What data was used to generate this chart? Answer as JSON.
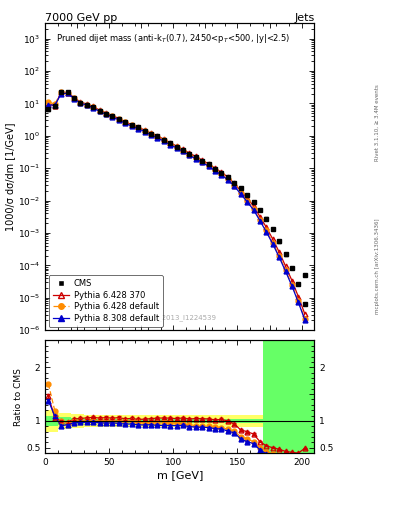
{
  "title_top": "7000 GeV pp",
  "title_right": "Jets",
  "ylabel_main": "1000/σ dσ/dm [1/GeV]",
  "ylabel_ratio": "Ratio to CMS",
  "xlabel": "m [GeV]",
  "watermark": "CMS_2013_I1224539",
  "right_label": "mcplots.cern.ch [arXiv:1306.3436]",
  "right_label2": "Rivet 3.1.10, ≥ 3.4M events",
  "cms_x": [
    2.5,
    7.5,
    12.5,
    17.5,
    22.5,
    27.5,
    32.5,
    37.5,
    42.5,
    47.5,
    52.5,
    57.5,
    62.5,
    67.5,
    72.5,
    77.5,
    82.5,
    87.5,
    92.5,
    97.5,
    102.5,
    107.5,
    112.5,
    117.5,
    122.5,
    127.5,
    132.5,
    137.5,
    142.5,
    147.5,
    152.5,
    157.5,
    162.5,
    167.5,
    172.5,
    177.5,
    182.5,
    187.5,
    192.5,
    197.5,
    202.5
  ],
  "cms_y": [
    6.5,
    8.0,
    22.0,
    22.0,
    14.5,
    10.5,
    9.0,
    7.5,
    5.8,
    4.8,
    4.0,
    3.2,
    2.6,
    2.1,
    1.8,
    1.45,
    1.15,
    0.95,
    0.74,
    0.58,
    0.46,
    0.36,
    0.28,
    0.22,
    0.17,
    0.13,
    0.097,
    0.073,
    0.053,
    0.036,
    0.024,
    0.015,
    0.009,
    0.0052,
    0.0028,
    0.0013,
    0.00055,
    0.00022,
    8.2e-05,
    2.7e-05,
    6.5e-06
  ],
  "cms_yerr": [
    0.5,
    0.6,
    1.5,
    1.5,
    1.0,
    0.7,
    0.6,
    0.5,
    0.38,
    0.32,
    0.26,
    0.21,
    0.17,
    0.14,
    0.12,
    0.096,
    0.076,
    0.063,
    0.049,
    0.039,
    0.031,
    0.024,
    0.019,
    0.015,
    0.012,
    0.0088,
    0.0066,
    0.005,
    0.0036,
    0.0025,
    0.0017,
    0.0011,
    0.00066,
    0.00039,
    0.00021,
    0.0001,
    4.3e-05,
    1.8e-05,
    6.8e-06,
    2.3e-06,
    5.6e-07
  ],
  "cms_isolated_x": [
    202.5
  ],
  "cms_isolated_y": [
    5e-05
  ],
  "py6_370_x": [
    2.5,
    7.5,
    12.5,
    17.5,
    22.5,
    27.5,
    32.5,
    37.5,
    42.5,
    47.5,
    52.5,
    57.5,
    62.5,
    67.5,
    72.5,
    77.5,
    82.5,
    87.5,
    92.5,
    97.5,
    102.5,
    107.5,
    112.5,
    117.5,
    122.5,
    127.5,
    132.5,
    137.5,
    142.5,
    147.5,
    152.5,
    157.5,
    162.5,
    167.5,
    172.5,
    177.5,
    182.5,
    187.5,
    192.5,
    197.5,
    202.5
  ],
  "py6_370_y": [
    9.5,
    8.5,
    22.0,
    21.5,
    15.0,
    11.0,
    9.5,
    8.0,
    6.1,
    5.1,
    4.2,
    3.4,
    2.7,
    2.2,
    1.85,
    1.5,
    1.2,
    1.0,
    0.78,
    0.61,
    0.48,
    0.38,
    0.29,
    0.23,
    0.177,
    0.135,
    0.099,
    0.075,
    0.053,
    0.034,
    0.02,
    0.012,
    0.0068,
    0.0032,
    0.0015,
    0.00065,
    0.00026,
    9.5e-05,
    3.4e-05,
    1.08e-05,
    3.2e-06
  ],
  "py6_def_x": [
    2.5,
    7.5,
    12.5,
    17.5,
    22.5,
    27.5,
    32.5,
    37.5,
    42.5,
    47.5,
    52.5,
    57.5,
    62.5,
    67.5,
    72.5,
    77.5,
    82.5,
    87.5,
    92.5,
    97.5,
    102.5,
    107.5,
    112.5,
    117.5,
    122.5,
    127.5,
    132.5,
    137.5,
    142.5,
    147.5,
    152.5,
    157.5,
    162.5,
    167.5,
    172.5,
    177.5,
    182.5,
    187.5,
    192.5,
    197.5,
    202.5
  ],
  "py6_def_y": [
    11.0,
    9.5,
    22.0,
    21.0,
    14.5,
    10.5,
    9.0,
    7.5,
    5.8,
    4.8,
    4.0,
    3.2,
    2.6,
    2.1,
    1.75,
    1.4,
    1.13,
    0.92,
    0.72,
    0.56,
    0.44,
    0.34,
    0.26,
    0.2,
    0.155,
    0.118,
    0.086,
    0.064,
    0.045,
    0.029,
    0.017,
    0.01,
    0.0055,
    0.0026,
    0.0012,
    0.0005,
    0.0002,
    7.2e-05,
    2.5e-05,
    7.8e-06,
    2.3e-06
  ],
  "py8_def_x": [
    2.5,
    7.5,
    12.5,
    17.5,
    22.5,
    27.5,
    32.5,
    37.5,
    42.5,
    47.5,
    52.5,
    57.5,
    62.5,
    67.5,
    72.5,
    77.5,
    82.5,
    87.5,
    92.5,
    97.5,
    102.5,
    107.5,
    112.5,
    117.5,
    122.5,
    127.5,
    132.5,
    137.5,
    142.5,
    147.5,
    152.5,
    157.5,
    162.5,
    167.5,
    172.5,
    177.5,
    182.5,
    187.5,
    192.5,
    197.5,
    202.5
  ],
  "py8_def_y": [
    9.0,
    8.7,
    20.0,
    20.5,
    14.0,
    10.2,
    8.8,
    7.3,
    5.6,
    4.6,
    3.85,
    3.05,
    2.45,
    1.98,
    1.67,
    1.34,
    1.07,
    0.87,
    0.68,
    0.53,
    0.42,
    0.33,
    0.25,
    0.195,
    0.15,
    0.114,
    0.083,
    0.062,
    0.043,
    0.028,
    0.016,
    0.0092,
    0.0052,
    0.0024,
    0.00108,
    0.00046,
    0.00018,
    6.6e-05,
    2.3e-05,
    7.2e-06,
    2.1e-06
  ],
  "ratio_py6_370_y": [
    1.46,
    1.06,
    1.0,
    0.977,
    1.034,
    1.048,
    1.056,
    1.067,
    1.052,
    1.063,
    1.05,
    1.063,
    1.038,
    1.048,
    1.028,
    1.034,
    1.043,
    1.053,
    1.054,
    1.052,
    1.043,
    1.056,
    1.036,
    1.045,
    1.041,
    1.038,
    1.021,
    1.027,
    1.0,
    0.944,
    0.833,
    0.8,
    0.756,
    0.615,
    0.536,
    0.5,
    0.473,
    0.432,
    0.415,
    0.4,
    0.492
  ],
  "ratio_py6_def_y": [
    1.69,
    1.19,
    1.0,
    0.955,
    1.0,
    1.0,
    1.0,
    1.0,
    1.0,
    1.0,
    1.0,
    1.0,
    1.0,
    1.0,
    0.972,
    0.966,
    0.983,
    0.968,
    0.973,
    0.966,
    0.957,
    0.944,
    0.929,
    0.909,
    0.912,
    0.908,
    0.887,
    0.877,
    0.849,
    0.806,
    0.708,
    0.667,
    0.611,
    0.5,
    0.429,
    0.385,
    0.364,
    0.327,
    0.305,
    0.289,
    0.354
  ],
  "ratio_py8_def_y": [
    1.38,
    1.088,
    0.909,
    0.932,
    0.966,
    0.971,
    0.978,
    0.973,
    0.966,
    0.958,
    0.963,
    0.953,
    0.942,
    0.943,
    0.928,
    0.924,
    0.93,
    0.916,
    0.919,
    0.914,
    0.913,
    0.917,
    0.893,
    0.886,
    0.882,
    0.877,
    0.856,
    0.849,
    0.811,
    0.778,
    0.667,
    0.613,
    0.578,
    0.462,
    0.386,
    0.354,
    0.327,
    0.3,
    0.28,
    0.267,
    0.323
  ],
  "ratio_x": [
    2.5,
    7.5,
    12.5,
    17.5,
    22.5,
    27.5,
    32.5,
    37.5,
    42.5,
    47.5,
    52.5,
    57.5,
    62.5,
    67.5,
    72.5,
    77.5,
    82.5,
    87.5,
    92.5,
    97.5,
    102.5,
    107.5,
    112.5,
    117.5,
    122.5,
    127.5,
    132.5,
    137.5,
    142.5,
    147.5,
    152.5,
    157.5,
    162.5,
    167.5,
    172.5,
    177.5,
    182.5,
    187.5,
    192.5,
    197.5,
    202.5
  ],
  "band_edges": [
    0,
    10,
    20,
    30,
    40,
    50,
    60,
    70,
    80,
    90,
    100,
    110,
    120,
    130,
    140,
    150,
    160,
    170,
    180,
    190,
    200,
    210
  ],
  "green_lo": [
    0.9,
    0.93,
    0.95,
    0.96,
    0.97,
    0.97,
    0.97,
    0.97,
    0.97,
    0.97,
    0.97,
    0.97,
    0.97,
    0.97,
    0.97,
    0.97,
    0.97,
    0.4,
    0.4,
    0.4,
    0.4
  ],
  "green_hi": [
    1.1,
    1.07,
    1.05,
    1.04,
    1.03,
    1.03,
    1.03,
    1.03,
    1.03,
    1.03,
    1.03,
    1.03,
    1.03,
    1.03,
    1.03,
    1.03,
    1.03,
    2.5,
    2.5,
    2.5,
    2.5
  ],
  "yellow_lo": [
    0.8,
    0.85,
    0.87,
    0.88,
    0.89,
    0.89,
    0.89,
    0.89,
    0.89,
    0.89,
    0.89,
    0.89,
    0.89,
    0.89,
    0.89,
    0.89,
    0.89,
    0.4,
    0.4,
    0.4,
    0.4
  ],
  "yellow_hi": [
    1.2,
    1.15,
    1.13,
    1.12,
    1.11,
    1.11,
    1.11,
    1.11,
    1.11,
    1.11,
    1.11,
    1.11,
    1.11,
    1.11,
    1.11,
    1.11,
    1.11,
    2.5,
    2.5,
    2.5,
    2.5
  ],
  "color_cms": "black",
  "color_py6_370": "#cc0000",
  "color_py6_def": "#ff8c00",
  "color_py8_def": "#0000cc",
  "xlim": [
    0,
    210
  ],
  "ylim_main": [
    1e-06,
    3000.0
  ],
  "ylim_ratio": [
    0.4,
    2.5
  ]
}
